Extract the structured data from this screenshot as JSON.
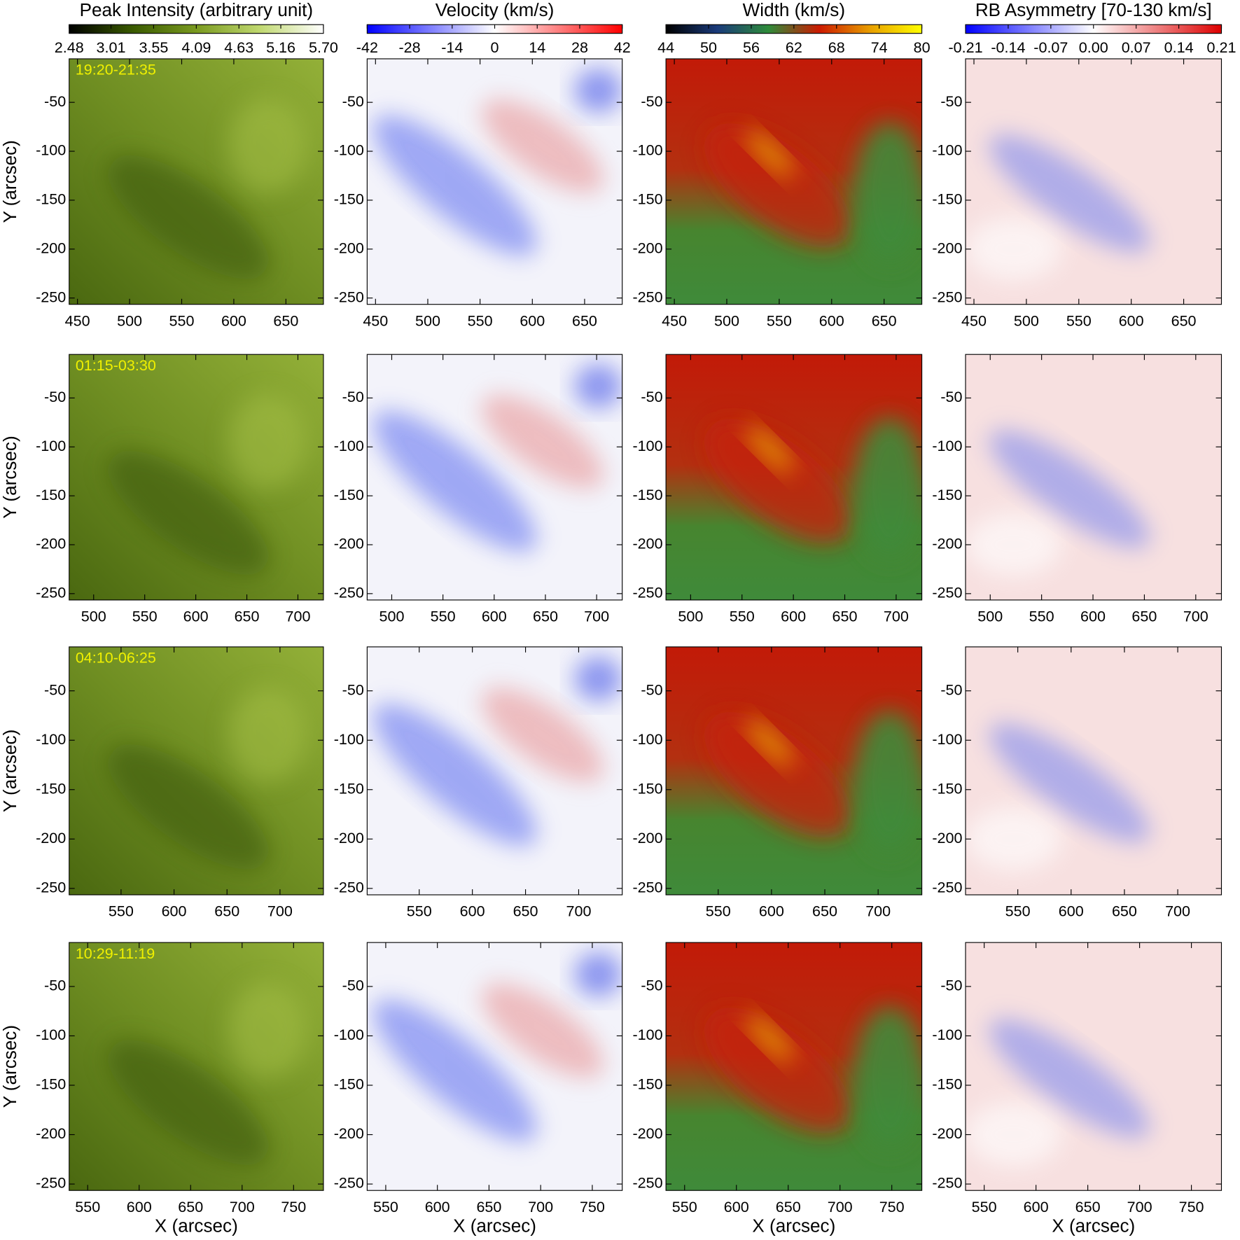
{
  "chart_data": {
    "type": "heatmap_grid",
    "x_label": "X (arcsec)",
    "y_label": "Y (arcsec)",
    "colorbars": [
      {
        "title": "Peak Intensity (arbitrary unit)",
        "colors": [
          "#000000",
          "#3a5a00",
          "#7a9a20",
          "#c0d870",
          "#ffffff"
        ],
        "lim": [
          2.48,
          5.7
        ],
        "ticks": [
          2.48,
          3.01,
          3.55,
          4.09,
          4.63,
          5.16,
          {
            "value": 5.7,
            "label": "5.70"
          }
        ]
      },
      {
        "title": "Velocity (km/s)",
        "colors": [
          "#0000ff",
          "#ffffff",
          "#ff0000"
        ],
        "lim": [
          -42,
          42
        ],
        "ticks": [
          -42,
          -28,
          -14,
          0,
          14,
          28,
          42
        ]
      },
      {
        "title": "Width (km/s)",
        "colors": [
          "#000000",
          "#1a3a7a",
          "#2e8b3a",
          "#cc1a00",
          "#e8a000",
          "#ffff00"
        ],
        "lim": [
          44,
          80
        ],
        "ticks": [
          44,
          50,
          56,
          62,
          68,
          74,
          80
        ]
      },
      {
        "title": "RB Asymmetry [70-130 km/s]",
        "colors": [
          "#0000ff",
          "#ffffff",
          "#dd0000"
        ],
        "lim": [
          -0.21,
          0.21
        ],
        "ticks": [
          -0.21,
          -0.14,
          -0.07,
          {
            "value": 0,
            "label": "0.00"
          },
          0.07,
          0.14,
          0.21
        ]
      }
    ],
    "rows": [
      {
        "annotation": "19:20-21:35",
        "xlim": [
          442,
          686
        ],
        "xticks": [
          450,
          500,
          550,
          600,
          650
        ],
        "ylim": [
          -256.5,
          -5.5
        ],
        "yticks": [
          -250,
          -200,
          -150,
          -100,
          -50
        ]
      },
      {
        "annotation": "01:15-03:30",
        "xlim": [
          476,
          725
        ],
        "xticks": [
          500,
          550,
          600,
          650,
          700
        ],
        "ylim": [
          -256.5,
          -5.5
        ],
        "yticks": [
          -250,
          -200,
          -150,
          -100,
          -50
        ]
      },
      {
        "annotation": "04:10-06:25",
        "xlim": [
          501,
          741
        ],
        "xticks": [
          550,
          600,
          650,
          700
        ],
        "ylim": [
          -256.5,
          -5.5
        ],
        "yticks": [
          -250,
          -200,
          -150,
          -100,
          -50
        ]
      },
      {
        "annotation": "10:29-11:19",
        "xlim": [
          532,
          779
        ],
        "xticks": [
          550,
          600,
          650,
          700,
          750
        ],
        "ylim": [
          -256.5,
          -5.5
        ],
        "yticks": [
          -250,
          -200,
          -150,
          -100,
          -50
        ]
      }
    ]
  }
}
